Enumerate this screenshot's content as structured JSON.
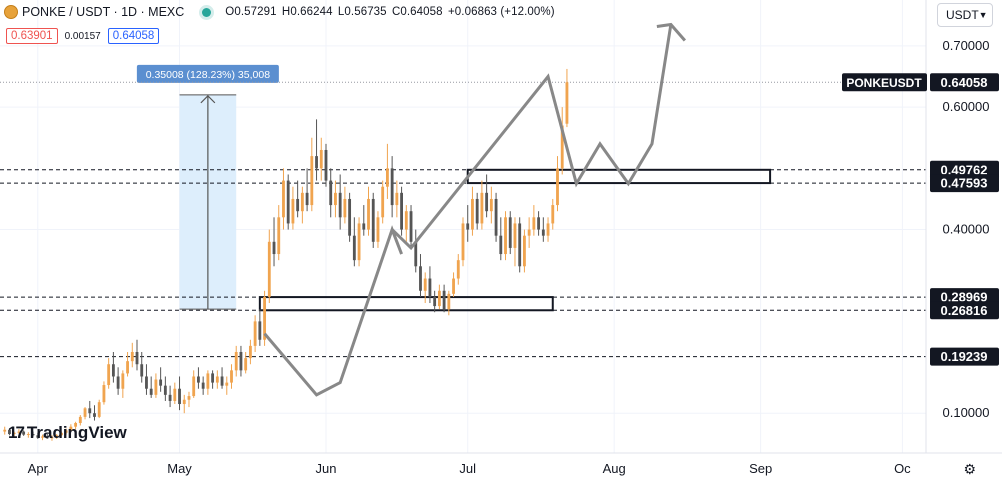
{
  "header": {
    "title": "PONKE / USDT · 1D · MEXC",
    "ohlc": [
      {
        "label": "O",
        "value": "0.57291"
      },
      {
        "label": "H",
        "value": "0.66244"
      },
      {
        "label": "L",
        "value": "0.56735"
      },
      {
        "label": "C",
        "value": "0.64058"
      }
    ],
    "change": "+0.06863 (+12.00%)",
    "sell_price": "0.63901",
    "spread": "0.00157",
    "buy_price": "0.64058"
  },
  "currency_button": "USDT",
  "logo_text": "TradingView",
  "logo_mark": "17",
  "settings_icon": "gear-icon",
  "colors": {
    "up": "#f0a44f",
    "down": "#555555",
    "axis_bg": "#ffffff",
    "measure_fill": "#ddeefc",
    "measure_label": "#5b8fd0"
  },
  "chart_data": {
    "type": "candlestick",
    "symbol": "PONKEUSDT",
    "ylim": [
      0.035,
      0.775
    ],
    "y_ticks": [
      {
        "value": 0.7,
        "label": "0.70000"
      },
      {
        "value": 0.6,
        "label": "0.60000"
      },
      {
        "value": 0.4,
        "label": "0.40000"
      },
      {
        "value": 0.1,
        "label": "0.10000"
      }
    ],
    "x_axis": {
      "start": "2024-03-24",
      "end": "2024-10-06",
      "ticks": [
        {
          "date": "2024-04-01",
          "label": "Apr"
        },
        {
          "date": "2024-05-01",
          "label": "May"
        },
        {
          "date": "2024-06-01",
          "label": "Jun"
        },
        {
          "date": "2024-07-01",
          "label": "Jul"
        },
        {
          "date": "2024-08-01",
          "label": "Aug"
        },
        {
          "date": "2024-09-01",
          "label": "Sep"
        },
        {
          "date": "2024-10-01",
          "label": "Oc"
        }
      ]
    },
    "current_price": {
      "value": 0.64058,
      "label": "0.64058",
      "name": "PONKEUSDT"
    },
    "level_lines": [
      {
        "value": 0.49762,
        "label": "0.49762"
      },
      {
        "value": 0.47593,
        "label": "0.47593"
      },
      {
        "value": 0.28969,
        "label": "0.28969"
      },
      {
        "value": 0.26816,
        "label": "0.26816"
      },
      {
        "value": 0.19239,
        "label": "0.19239"
      }
    ],
    "zones": [
      {
        "start": "2024-05-18",
        "end": "2024-07-19",
        "low": 0.26816,
        "high": 0.28969
      },
      {
        "start": "2024-07-01",
        "end": "2024-09-03",
        "low": 0.47593,
        "high": 0.49762
      }
    ],
    "measure": {
      "start": "2024-05-01",
      "end": "2024-05-13",
      "from": 0.27,
      "to": 0.62,
      "label": "0.35008 (128.23%) 35,008"
    },
    "projection": [
      {
        "date": "2024-05-19",
        "value": 0.23
      },
      {
        "date": "2024-05-30",
        "value": 0.13
      },
      {
        "date": "2024-06-04",
        "value": 0.15
      },
      {
        "date": "2024-06-15",
        "value": 0.4
      },
      {
        "date": "2024-06-17",
        "value": 0.36
      },
      {
        "date": "2024-06-15",
        "value": 0.4
      },
      {
        "date": "2024-06-19",
        "value": 0.37
      },
      {
        "date": "2024-07-18",
        "value": 0.65
      },
      {
        "date": "2024-07-24",
        "value": 0.475
      },
      {
        "date": "2024-07-29",
        "value": 0.54
      },
      {
        "date": "2024-08-04",
        "value": 0.475
      },
      {
        "date": "2024-08-09",
        "value": 0.54
      },
      {
        "date": "2024-08-13",
        "value": 0.735
      }
    ],
    "candles": [
      [
        "2024-03-25",
        0.07,
        0.078,
        0.065,
        0.073
      ],
      [
        "2024-03-26",
        0.073,
        0.075,
        0.064,
        0.066
      ],
      [
        "2024-03-27",
        0.066,
        0.07,
        0.062,
        0.068
      ],
      [
        "2024-03-28",
        0.068,
        0.074,
        0.066,
        0.07
      ],
      [
        "2024-03-29",
        0.07,
        0.072,
        0.063,
        0.065
      ],
      [
        "2024-03-30",
        0.065,
        0.069,
        0.06,
        0.066
      ],
      [
        "2024-03-31",
        0.066,
        0.07,
        0.062,
        0.064
      ],
      [
        "2024-04-01",
        0.064,
        0.068,
        0.058,
        0.06
      ],
      [
        "2024-04-02",
        0.06,
        0.065,
        0.056,
        0.062
      ],
      [
        "2024-04-03",
        0.062,
        0.066,
        0.058,
        0.059
      ],
      [
        "2024-04-04",
        0.059,
        0.064,
        0.055,
        0.061
      ],
      [
        "2024-04-05",
        0.061,
        0.066,
        0.058,
        0.064
      ],
      [
        "2024-04-06",
        0.064,
        0.07,
        0.062,
        0.068
      ],
      [
        "2024-04-07",
        0.068,
        0.075,
        0.065,
        0.072
      ],
      [
        "2024-04-08",
        0.072,
        0.082,
        0.07,
        0.078
      ],
      [
        "2024-04-09",
        0.078,
        0.086,
        0.074,
        0.084
      ],
      [
        "2024-04-10",
        0.084,
        0.097,
        0.08,
        0.094
      ],
      [
        "2024-04-11",
        0.094,
        0.11,
        0.09,
        0.108
      ],
      [
        "2024-04-12",
        0.108,
        0.12,
        0.092,
        0.1
      ],
      [
        "2024-04-13",
        0.1,
        0.113,
        0.088,
        0.094
      ],
      [
        "2024-04-14",
        0.094,
        0.122,
        0.092,
        0.118
      ],
      [
        "2024-04-15",
        0.118,
        0.152,
        0.114,
        0.146
      ],
      [
        "2024-04-16",
        0.146,
        0.19,
        0.14,
        0.18
      ],
      [
        "2024-04-17",
        0.18,
        0.2,
        0.15,
        0.16
      ],
      [
        "2024-04-18",
        0.16,
        0.175,
        0.13,
        0.14
      ],
      [
        "2024-04-19",
        0.14,
        0.17,
        0.125,
        0.165
      ],
      [
        "2024-04-20",
        0.165,
        0.2,
        0.16,
        0.185
      ],
      [
        "2024-04-21",
        0.185,
        0.215,
        0.175,
        0.2
      ],
      [
        "2024-04-22",
        0.2,
        0.22,
        0.17,
        0.18
      ],
      [
        "2024-04-23",
        0.18,
        0.2,
        0.15,
        0.16
      ],
      [
        "2024-04-24",
        0.16,
        0.18,
        0.13,
        0.14
      ],
      [
        "2024-04-25",
        0.14,
        0.16,
        0.125,
        0.13
      ],
      [
        "2024-04-26",
        0.13,
        0.165,
        0.125,
        0.155
      ],
      [
        "2024-04-27",
        0.155,
        0.175,
        0.135,
        0.145
      ],
      [
        "2024-04-28",
        0.145,
        0.16,
        0.12,
        0.13
      ],
      [
        "2024-04-29",
        0.13,
        0.145,
        0.11,
        0.12
      ],
      [
        "2024-04-30",
        0.12,
        0.15,
        0.115,
        0.14
      ],
      [
        "2024-05-01",
        0.14,
        0.16,
        0.105,
        0.115
      ],
      [
        "2024-05-02",
        0.115,
        0.13,
        0.1,
        0.122
      ],
      [
        "2024-05-03",
        0.122,
        0.135,
        0.11,
        0.128
      ],
      [
        "2024-05-04",
        0.128,
        0.17,
        0.125,
        0.16
      ],
      [
        "2024-05-05",
        0.16,
        0.175,
        0.14,
        0.15
      ],
      [
        "2024-05-06",
        0.15,
        0.16,
        0.13,
        0.14
      ],
      [
        "2024-05-07",
        0.14,
        0.17,
        0.13,
        0.165
      ],
      [
        "2024-05-08",
        0.165,
        0.17,
        0.14,
        0.15
      ],
      [
        "2024-05-09",
        0.15,
        0.17,
        0.14,
        0.16
      ],
      [
        "2024-05-10",
        0.16,
        0.175,
        0.14,
        0.145
      ],
      [
        "2024-05-11",
        0.145,
        0.16,
        0.13,
        0.15
      ],
      [
        "2024-05-12",
        0.15,
        0.18,
        0.14,
        0.17
      ],
      [
        "2024-05-13",
        0.17,
        0.21,
        0.16,
        0.2
      ],
      [
        "2024-05-14",
        0.2,
        0.21,
        0.16,
        0.17
      ],
      [
        "2024-05-15",
        0.17,
        0.2,
        0.165,
        0.19
      ],
      [
        "2024-05-16",
        0.19,
        0.22,
        0.18,
        0.21
      ],
      [
        "2024-05-17",
        0.21,
        0.26,
        0.2,
        0.25
      ],
      [
        "2024-05-18",
        0.25,
        0.27,
        0.21,
        0.22
      ],
      [
        "2024-05-19",
        0.22,
        0.3,
        0.21,
        0.29
      ],
      [
        "2024-05-20",
        0.29,
        0.4,
        0.28,
        0.38
      ],
      [
        "2024-05-21",
        0.38,
        0.42,
        0.34,
        0.36
      ],
      [
        "2024-05-22",
        0.36,
        0.44,
        0.35,
        0.42
      ],
      [
        "2024-05-23",
        0.42,
        0.5,
        0.4,
        0.48
      ],
      [
        "2024-05-24",
        0.48,
        0.49,
        0.4,
        0.41
      ],
      [
        "2024-05-25",
        0.41,
        0.47,
        0.4,
        0.45
      ],
      [
        "2024-05-26",
        0.45,
        0.48,
        0.42,
        0.43
      ],
      [
        "2024-05-27",
        0.43,
        0.47,
        0.41,
        0.46
      ],
      [
        "2024-05-28",
        0.46,
        0.5,
        0.43,
        0.44
      ],
      [
        "2024-05-29",
        0.44,
        0.55,
        0.43,
        0.52
      ],
      [
        "2024-05-30",
        0.52,
        0.58,
        0.48,
        0.5
      ],
      [
        "2024-05-31",
        0.5,
        0.55,
        0.48,
        0.53
      ],
      [
        "2024-06-01",
        0.53,
        0.54,
        0.47,
        0.48
      ],
      [
        "2024-06-02",
        0.48,
        0.5,
        0.42,
        0.44
      ],
      [
        "2024-06-03",
        0.44,
        0.48,
        0.42,
        0.46
      ],
      [
        "2024-06-04",
        0.46,
        0.49,
        0.4,
        0.42
      ],
      [
        "2024-06-05",
        0.42,
        0.47,
        0.41,
        0.45
      ],
      [
        "2024-06-06",
        0.45,
        0.46,
        0.38,
        0.39
      ],
      [
        "2024-06-07",
        0.39,
        0.42,
        0.34,
        0.35
      ],
      [
        "2024-06-08",
        0.35,
        0.42,
        0.34,
        0.41
      ],
      [
        "2024-06-09",
        0.41,
        0.44,
        0.39,
        0.4
      ],
      [
        "2024-06-10",
        0.4,
        0.47,
        0.39,
        0.45
      ],
      [
        "2024-06-11",
        0.45,
        0.46,
        0.37,
        0.38
      ],
      [
        "2024-06-12",
        0.38,
        0.43,
        0.37,
        0.42
      ],
      [
        "2024-06-13",
        0.42,
        0.48,
        0.41,
        0.47
      ],
      [
        "2024-06-14",
        0.47,
        0.54,
        0.45,
        0.5
      ],
      [
        "2024-06-15",
        0.5,
        0.52,
        0.42,
        0.44
      ],
      [
        "2024-06-16",
        0.44,
        0.48,
        0.42,
        0.46
      ],
      [
        "2024-06-17",
        0.46,
        0.47,
        0.39,
        0.4
      ],
      [
        "2024-06-18",
        0.4,
        0.44,
        0.38,
        0.43
      ],
      [
        "2024-06-19",
        0.43,
        0.44,
        0.37,
        0.38
      ],
      [
        "2024-06-20",
        0.38,
        0.4,
        0.33,
        0.34
      ],
      [
        "2024-06-21",
        0.34,
        0.36,
        0.29,
        0.3
      ],
      [
        "2024-06-22",
        0.3,
        0.33,
        0.28,
        0.32
      ],
      [
        "2024-06-23",
        0.32,
        0.34,
        0.28,
        0.29
      ],
      [
        "2024-06-24",
        0.29,
        0.3,
        0.265,
        0.275
      ],
      [
        "2024-06-25",
        0.275,
        0.31,
        0.27,
        0.3
      ],
      [
        "2024-06-26",
        0.3,
        0.31,
        0.265,
        0.27
      ],
      [
        "2024-06-27",
        0.27,
        0.3,
        0.26,
        0.295
      ],
      [
        "2024-06-28",
        0.295,
        0.33,
        0.29,
        0.32
      ],
      [
        "2024-06-29",
        0.32,
        0.36,
        0.31,
        0.35
      ],
      [
        "2024-06-30",
        0.35,
        0.42,
        0.34,
        0.41
      ],
      [
        "2024-07-01",
        0.41,
        0.44,
        0.38,
        0.4
      ],
      [
        "2024-07-02",
        0.4,
        0.47,
        0.39,
        0.45
      ],
      [
        "2024-07-03",
        0.45,
        0.46,
        0.4,
        0.41
      ],
      [
        "2024-07-04",
        0.41,
        0.48,
        0.4,
        0.46
      ],
      [
        "2024-07-05",
        0.46,
        0.49,
        0.42,
        0.43
      ],
      [
        "2024-07-06",
        0.43,
        0.47,
        0.41,
        0.45
      ],
      [
        "2024-07-07",
        0.45,
        0.46,
        0.38,
        0.39
      ],
      [
        "2024-07-08",
        0.39,
        0.42,
        0.35,
        0.36
      ],
      [
        "2024-07-09",
        0.36,
        0.43,
        0.35,
        0.42
      ],
      [
        "2024-07-10",
        0.42,
        0.43,
        0.36,
        0.37
      ],
      [
        "2024-07-11",
        0.37,
        0.42,
        0.34,
        0.41
      ],
      [
        "2024-07-12",
        0.41,
        0.42,
        0.33,
        0.34
      ],
      [
        "2024-07-13",
        0.34,
        0.4,
        0.33,
        0.39
      ],
      [
        "2024-07-14",
        0.39,
        0.42,
        0.37,
        0.4
      ],
      [
        "2024-07-15",
        0.4,
        0.44,
        0.39,
        0.42
      ],
      [
        "2024-07-16",
        0.42,
        0.43,
        0.39,
        0.4
      ],
      [
        "2024-07-17",
        0.4,
        0.42,
        0.38,
        0.39
      ],
      [
        "2024-07-18",
        0.39,
        0.42,
        0.38,
        0.41
      ],
      [
        "2024-07-19",
        0.41,
        0.45,
        0.4,
        0.44
      ],
      [
        "2024-07-20",
        0.44,
        0.52,
        0.43,
        0.5
      ],
      [
        "2024-07-21",
        0.5,
        0.6,
        0.49,
        0.57
      ],
      [
        "2024-07-22",
        0.5729,
        0.6624,
        0.5674,
        0.6406
      ]
    ]
  }
}
